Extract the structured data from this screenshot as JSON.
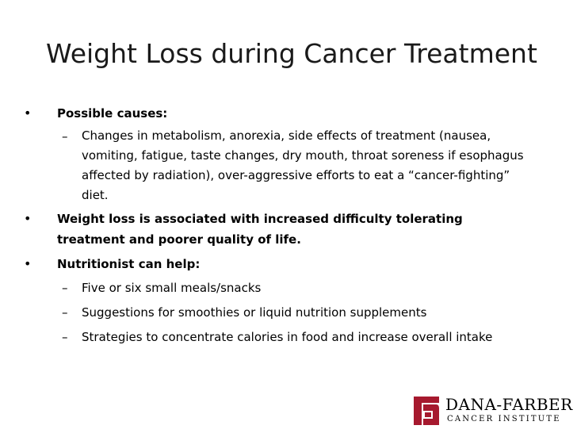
{
  "slide": {
    "title": "Weight Loss during Cancer Treatment",
    "bullet_char": "•",
    "dash_char": "–",
    "bullets": [
      {
        "text": "Possible causes:",
        "subs": [
          "Changes in metabolism, anorexia, side effects of treatment (nausea, vomiting, fatigue, taste changes, dry mouth, throat soreness if esophagus affected by radiation), over-aggressive efforts to eat a “cancer-fighting” diet."
        ]
      },
      {
        "text": "Weight loss is associated with increased difficulty tolerating treatment and poorer quality of life.",
        "subs": []
      },
      {
        "text": "Nutritionist can help:",
        "subs": [
          "Five or six small meals/snacks",
          "Suggestions for smoothies or liquid nutrition supplements",
          "Strategies to concentrate calories in food and increase overall intake"
        ]
      }
    ]
  },
  "logo": {
    "name": "DANA-FARBER",
    "subtitle": "CANCER INSTITUTE",
    "color": "#a6192e"
  }
}
